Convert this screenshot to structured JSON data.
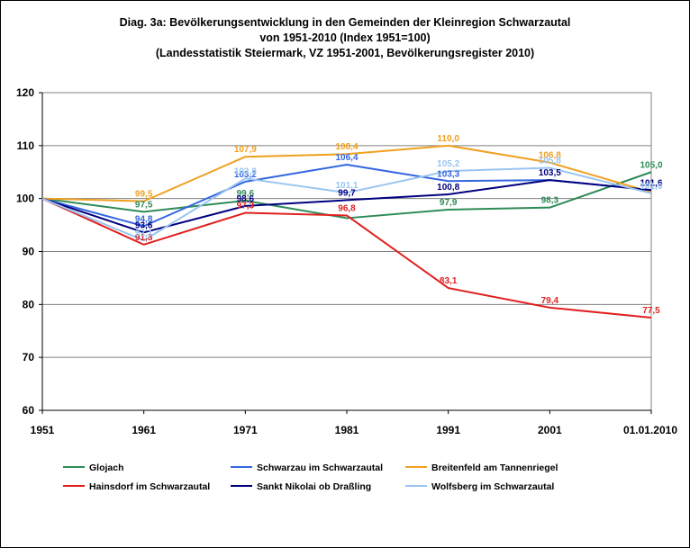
{
  "chart_data": {
    "type": "line",
    "title_lines": [
      "Diag. 3a: Bevölkerungsentwicklung  in den Gemeinden  der Kleinregion  Schwarzautal",
      "von 1951-2010  (Index 1951=100)",
      "(Landesstatistik  Steiermark,  VZ 1951-2001,  Bevölkerungsregister  2010)"
    ],
    "categories": [
      "1951",
      "1961",
      "1971",
      "1981",
      "1991",
      "2001",
      "01.01.2010"
    ],
    "ylim": [
      60,
      120
    ],
    "yticks": [
      "60",
      "70",
      "80",
      "90",
      "100",
      "110",
      "120"
    ],
    "grid": true,
    "legend_position": "bottom",
    "series": [
      {
        "name": "Glojach",
        "color": "#2e8b57",
        "values": [
          100,
          97.5,
          99.6,
          96.3,
          97.9,
          98.3,
          105.0
        ],
        "labels": [
          "",
          "97,5",
          "99,6",
          "",
          "97,9",
          "98,3",
          "105,0"
        ]
      },
      {
        "name": "Schwarzau im Schwarzautal",
        "color": "#3366e0",
        "values": [
          100,
          94.8,
          103.2,
          106.4,
          103.3,
          103.5,
          101.6
        ],
        "labels": [
          "",
          "94,8",
          "103,2",
          "106,4",
          "103,3",
          "",
          ""
        ]
      },
      {
        "name": "Breitenfeld am Tannenriegel",
        "color": "#f0a020",
        "values": [
          100,
          99.5,
          107.9,
          108.4,
          110.0,
          106.8,
          101.2
        ],
        "labels": [
          "",
          "99,5",
          "107,9",
          "108,4",
          "110,0",
          "106,8",
          ""
        ]
      },
      {
        "name": "Hainsdorf im Schwarzautal",
        "color": "#e02020",
        "values": [
          100,
          91.3,
          97.3,
          96.8,
          83.1,
          79.4,
          77.5
        ],
        "labels": [
          "",
          "91,3",
          "97,3",
          "96,8",
          "83,1",
          "79,4",
          "77,5"
        ]
      },
      {
        "name": "Sankt Nikolai ob Draßling",
        "color": "#00007f",
        "values": [
          100,
          93.6,
          98.6,
          99.7,
          100.8,
          103.5,
          101.6
        ],
        "labels": [
          "",
          "93,6",
          "98,6",
          "99,7",
          "100,8",
          "103,5",
          "101,6"
        ]
      },
      {
        "name": "Wolfsberg im Schwarzautal",
        "color": "#99c4f0",
        "values": [
          100,
          92.1,
          103.8,
          101.1,
          105.2,
          105.8,
          101.0
        ],
        "labels": [
          "",
          "92,1",
          "103,8",
          "101,1",
          "105,2",
          "105,8",
          "101,0"
        ]
      }
    ]
  }
}
